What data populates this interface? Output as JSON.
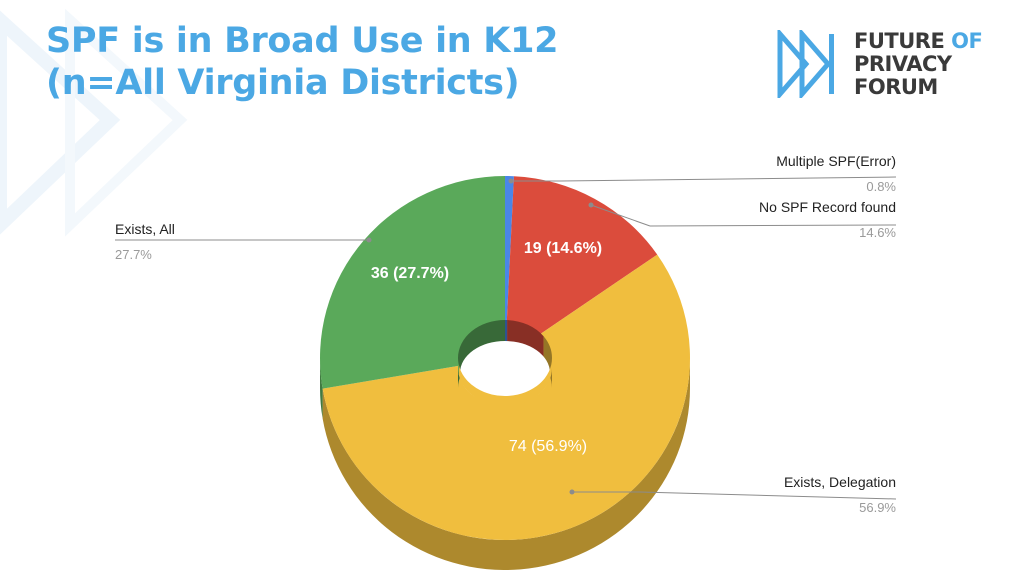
{
  "title": {
    "line1": "SPF is in Broad Use in K12",
    "line2": "(n=All Virginia Districts)"
  },
  "logo": {
    "line1_a": "FUTURE",
    "line1_b": "OF",
    "line2": "PRIVACY",
    "line3": "FORUM",
    "icon": "fast-forward-icon"
  },
  "colors": {
    "title": "#4ba8e4",
    "multiple_spf": "#4a86e8",
    "no_spf": "#db4c3c",
    "delegation": "#f0be3e",
    "exists_all": "#5aa95a"
  },
  "chart_data": {
    "type": "pie",
    "style": "3d-donut",
    "slices": [
      {
        "label": "Multiple SPF(Error)",
        "value": 1,
        "percent": "0.8%",
        "inner_label": "",
        "color": "#4a86e8"
      },
      {
        "label": "No SPF Record found",
        "value": 19,
        "percent": "14.6%",
        "inner_label": "19 (14.6%)",
        "color": "#db4c3c"
      },
      {
        "label": "Exists, Delegation",
        "value": 74,
        "percent": "56.9%",
        "inner_label": "74 (56.9%)",
        "color": "#f0be3e"
      },
      {
        "label": "Exists, All",
        "value": 36,
        "percent": "27.7%",
        "inner_label": "36 (27.7%)",
        "color": "#5aa95a"
      }
    ]
  }
}
